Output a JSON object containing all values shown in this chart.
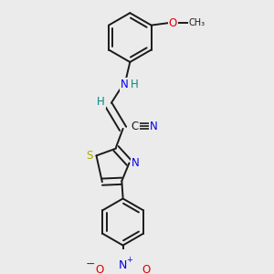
{
  "bg_color": "#ebebeb",
  "bond_color": "#1a1a1a",
  "bond_width": 1.4,
  "dbo": 0.018,
  "atom_colors": {
    "N": "#0000ee",
    "O": "#dd0000",
    "S": "#aaaa00",
    "C": "#1a1a1a",
    "H": "#008888"
  },
  "fs": 8.5
}
